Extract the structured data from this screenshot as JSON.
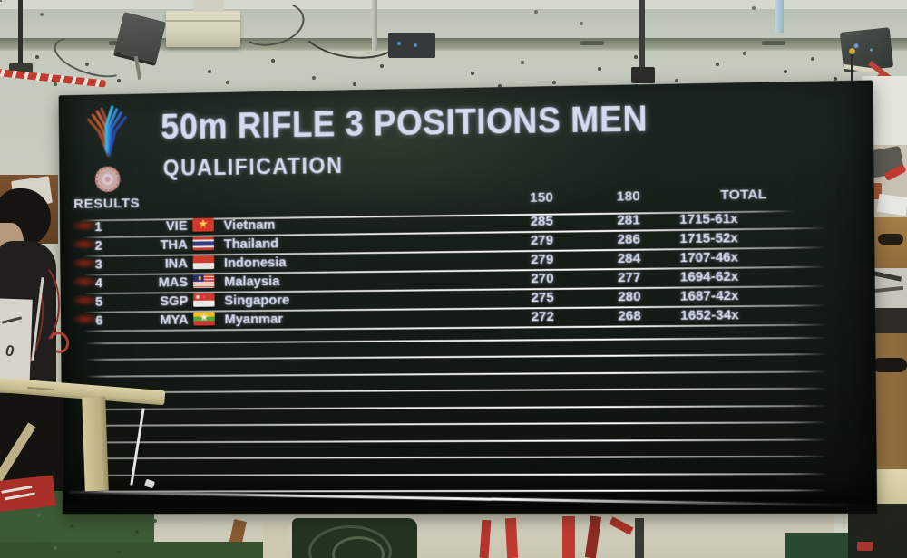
{
  "scoreboard": {
    "logo": "sea-games-logo",
    "title": "50m RIFLE 3 POSITIONS MEN",
    "stage": "QUALIFICATION",
    "results_label": "RESULTS",
    "columns": [
      "150",
      "180",
      "TOTAL"
    ],
    "rows": [
      {
        "rank": "1",
        "noc": "VIE",
        "country": "Vietnam",
        "flag": "vie",
        "score_150": "285",
        "score_180": "281",
        "total": "1715-61x"
      },
      {
        "rank": "2",
        "noc": "THA",
        "country": "Thailand",
        "flag": "tha",
        "score_150": "279",
        "score_180": "286",
        "total": "1715-52x"
      },
      {
        "rank": "3",
        "noc": "INA",
        "country": "Indonesia",
        "flag": "ina",
        "score_150": "279",
        "score_180": "284",
        "total": "1707-46x"
      },
      {
        "rank": "4",
        "noc": "MAS",
        "country": "Malaysia",
        "flag": "mas",
        "score_150": "270",
        "score_180": "277",
        "total": "1694-62x"
      },
      {
        "rank": "5",
        "noc": "SGP",
        "country": "Singapore",
        "flag": "sgp",
        "score_150": "275",
        "score_180": "280",
        "total": "1687-42x"
      },
      {
        "rank": "6",
        "noc": "MYA",
        "country": "Myanmar",
        "flag": "mya",
        "score_150": "272",
        "score_180": "268",
        "total": "1652-34x"
      }
    ],
    "empty_row_count": 10
  },
  "foreground": {
    "bib_digit": "0"
  },
  "colors": {
    "screen_text": "#d6daee",
    "screen_bg": "#141b15",
    "separator": "#ffffff",
    "rank_marker": "#8e2318",
    "wall": "#ccd1c3",
    "carpet": "#3d5a36",
    "railing": "#c9bc90",
    "red_prop": "#b5352c"
  }
}
